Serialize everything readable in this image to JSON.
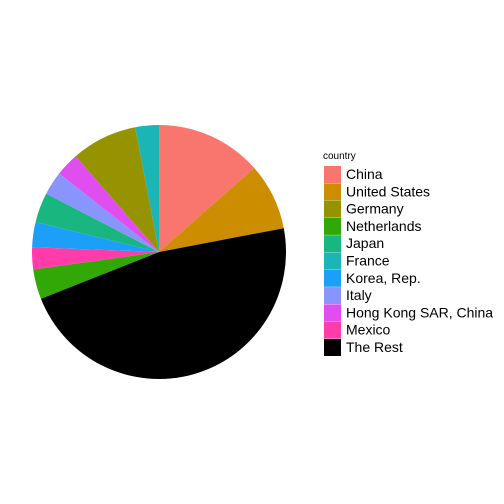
{
  "chart_data": {
    "type": "pie",
    "legend": {
      "title": "country",
      "placement": "right"
    },
    "series": [
      {
        "name": "China",
        "value": 13.5,
        "color": "#F8766D"
      },
      {
        "name": "United States",
        "value": 8.5,
        "color": "#CD8D00"
      },
      {
        "name": "The Rest",
        "value": 47.0,
        "color": "#000000"
      },
      {
        "name": "Netherlands",
        "value": 3.8,
        "color": "#31A806"
      },
      {
        "name": "Mexico",
        "value": 2.8,
        "color": "#FF3CAA"
      },
      {
        "name": "Korea, Rep.",
        "value": 3.2,
        "color": "#1C9FF8"
      },
      {
        "name": "Japan",
        "value": 3.8,
        "color": "#19B77F"
      },
      {
        "name": "Italy",
        "value": 3.0,
        "color": "#8994FF"
      },
      {
        "name": "Hong Kong SAR, China",
        "value": 3.0,
        "color": "#E04DF0"
      },
      {
        "name": "Germany",
        "value": 8.4,
        "color": "#959400"
      },
      {
        "name": "France",
        "value": 3.0,
        "color": "#1CB5B5"
      }
    ],
    "legend_order": [
      "China",
      "United States",
      "Germany",
      "Netherlands",
      "Japan",
      "France",
      "Korea, Rep.",
      "Italy",
      "Hong Kong SAR, China",
      "Mexico",
      "The Rest"
    ],
    "start_angle_deg": 0,
    "direction": "clockwise"
  }
}
